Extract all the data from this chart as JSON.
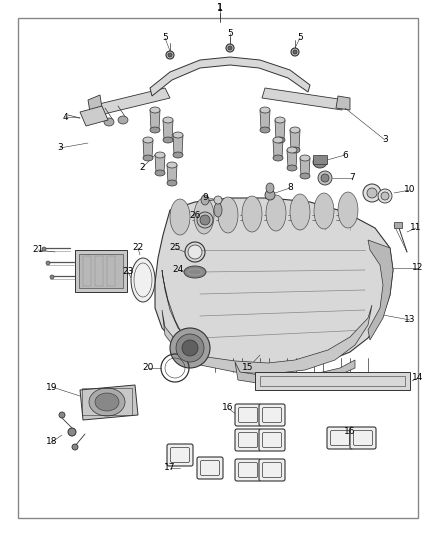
{
  "bg_color": "#ffffff",
  "border_color": "#888888",
  "line_color": "#333333",
  "fig_width": 4.38,
  "fig_height": 5.33,
  "dpi": 100,
  "label_fontsize": 6.5,
  "label_color": "#000000",
  "part_fill": "#e0e0e0",
  "part_fill2": "#c8c8c8",
  "part_fill3": "#b0b0b0",
  "part_edge": "#333333",
  "gasket_fill": "#f0f0f0"
}
